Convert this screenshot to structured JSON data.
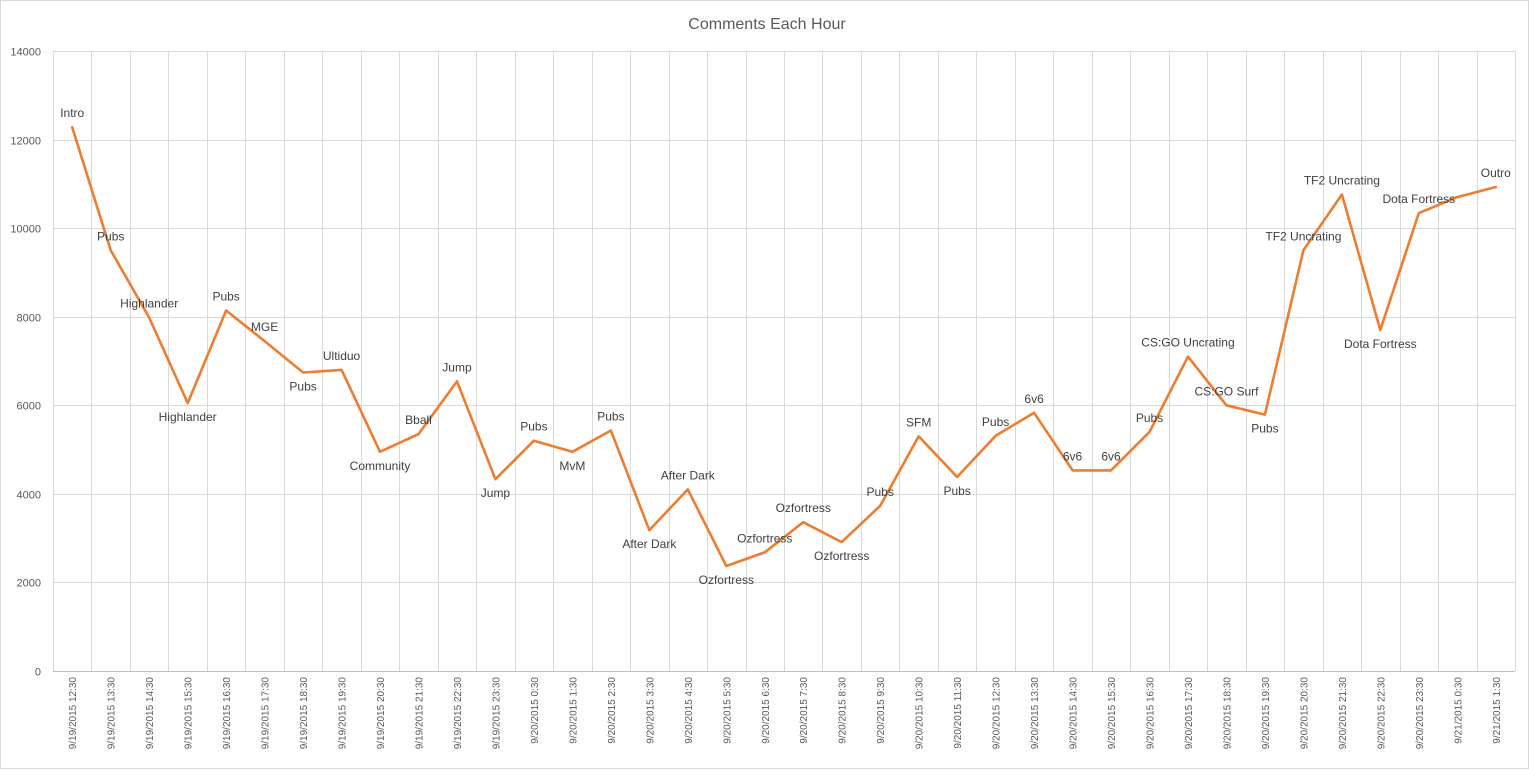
{
  "chart_data": {
    "type": "line",
    "title": "Comments Each Hour",
    "xlabel": "",
    "ylabel": "",
    "ylim": [
      0,
      14000
    ],
    "yticks": [
      "0",
      "2000",
      "4000",
      "6000",
      "8000",
      "10000",
      "12000",
      "14000"
    ],
    "grid": true,
    "legend": "none",
    "line_color": "#ed7d31",
    "categories": [
      "9/19/2015 12:30",
      "9/19/2015 13:30",
      "9/19/2015 14:30",
      "9/19/2015 15:30",
      "9/19/2015 16:30",
      "9/19/2015 17:30",
      "9/19/2015 18:30",
      "9/19/2015 19:30",
      "9/19/2015 20:30",
      "9/19/2015 21:30",
      "9/19/2015 22:30",
      "9/19/2015 23:30",
      "9/20/2015 0:30",
      "9/20/2015 1:30",
      "9/20/2015 2:30",
      "9/20/2015 3:30",
      "9/20/2015 4:30",
      "9/20/2015 5:30",
      "9/20/2015 6:30",
      "9/20/2015 7:30",
      "9/20/2015 8:30",
      "9/20/2015 9:30",
      "9/20/2015 10:30",
      "9/20/2015 11:30",
      "9/20/2015 12:30",
      "9/20/2015 13:30",
      "9/20/2015 14:30",
      "9/20/2015 15:30",
      "9/20/2015 16:30",
      "9/20/2015 17:30",
      "9/20/2015 18:30",
      "9/20/2015 19:30",
      "9/20/2015 20:30",
      "9/20/2015 21:30",
      "9/20/2015 22:30",
      "9/20/2015 23:30",
      "9/21/2015 0:30",
      "9/21/2015 1:30"
    ],
    "series": [
      {
        "values": [
          12280,
          9500,
          7980,
          6050,
          8140,
          7450,
          6740,
          6800,
          4950,
          5350,
          6540,
          4330,
          5200,
          4950,
          5430,
          3180,
          4100,
          2370,
          2680,
          3360,
          2910,
          3730,
          5300,
          4380,
          5310,
          5830,
          4530,
          4530,
          5400,
          7100,
          6000,
          5790,
          9500,
          10760,
          7700,
          10340,
          10700,
          10930
        ],
        "labels": [
          "Intro",
          "Pubs",
          "Highlander",
          "Highlander",
          "Pubs",
          "MGE",
          "Pubs",
          "Ultiduo",
          "Community",
          "Bball",
          "Jump",
          "Jump",
          "Pubs",
          "MvM",
          "Pubs",
          "After Dark",
          "After Dark",
          "Ozfortress",
          "Ozfortress",
          "Ozfortress",
          "Ozfortress",
          "Pubs",
          "SFM",
          "Pubs",
          "Pubs",
          "6v6",
          "6v6",
          "6v6",
          "Pubs",
          "CS:GO Uncrating",
          "CS:GO Surf",
          "Pubs",
          "TF2 Uncrating",
          "TF2 Uncrating",
          "Dota Fortress",
          "Dota Fortress",
          "",
          "Outro"
        ]
      }
    ]
  }
}
